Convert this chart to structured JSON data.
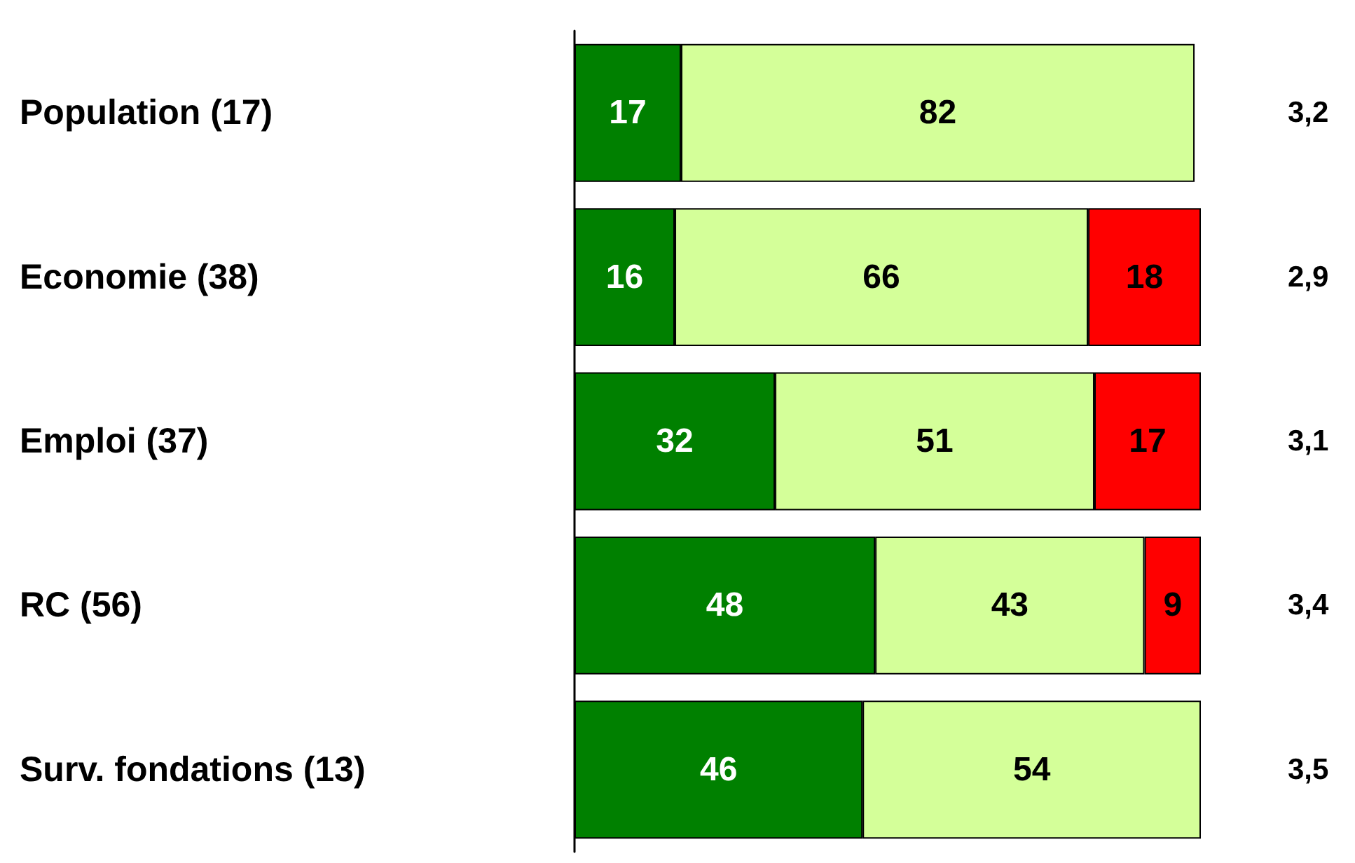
{
  "chart_data": {
    "type": "bar",
    "orientation": "horizontal",
    "stacked": true,
    "data_labels": true,
    "categories": [
      "Population (17)",
      "Economie (38)",
      "Emploi (37)",
      "RC (56)",
      "Surv. fondations (13)"
    ],
    "series": [
      {
        "color": "#008000",
        "values": [
          17,
          16,
          32,
          48,
          46
        ]
      },
      {
        "color": "#d4ff99",
        "values": [
          82,
          66,
          51,
          43,
          54
        ]
      },
      {
        "color": "#ff0000",
        "values": [
          null,
          18,
          17,
          9,
          null
        ]
      }
    ],
    "annotations": [
      "3,2",
      "2,9",
      "3,1",
      "3,4",
      "3,5"
    ]
  }
}
